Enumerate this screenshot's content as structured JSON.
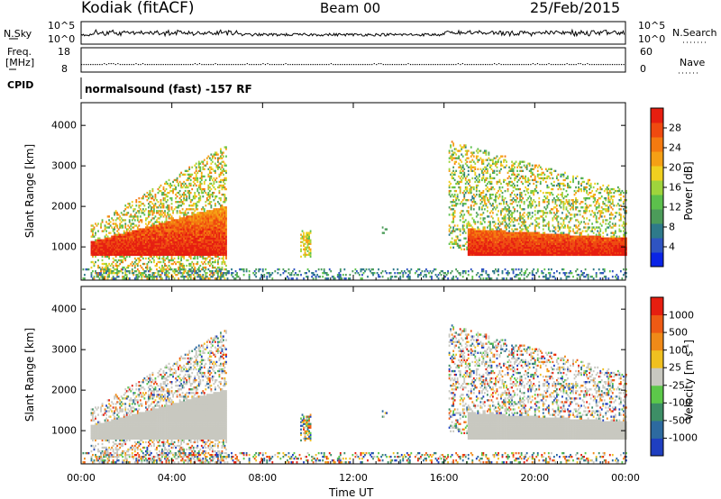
{
  "header": {
    "radar": "Kodiak (fitACF)",
    "beam": "Beam 00",
    "date": "25/Feb/2015"
  },
  "panels": {
    "nsky_label": "N.Sky",
    "nsearch_label": "N.Search",
    "nsky_ticks": [
      "10^5",
      "10^0"
    ],
    "nsearch_ticks": [
      "10^5",
      "10^0"
    ],
    "freq_label_1": "Freq.",
    "freq_label_2": "[MHz]",
    "freq_ticks": [
      "18",
      "8"
    ],
    "nave_label": "Nave",
    "nave_ticks": [
      "60",
      "0"
    ],
    "cpid_label": "CPID",
    "cpid_text": "normalsound (fast) -157 RF"
  },
  "chart_data": [
    {
      "type": "heatmap",
      "panel": "power",
      "ylabel": "Slant Range [km]",
      "xlabel": "",
      "xlim": [
        "00:00",
        "24:00"
      ],
      "ylim": [
        180,
        4560
      ],
      "yticks": [
        1000,
        2000,
        3000,
        4000
      ],
      "colorbar": {
        "label": "Power [dB]",
        "ticks": [
          4,
          8,
          12,
          16,
          20,
          24,
          28
        ],
        "range": [
          0,
          30
        ],
        "colors": [
          "#0a24e6",
          "#2f54c2",
          "#2e7a8a",
          "#4c9c5a",
          "#5cc04c",
          "#9fd43c",
          "#f0d020",
          "#f5a015",
          "#f47a10",
          "#ef4a10",
          "#e61e10"
        ]
      },
      "features": [
        {
          "name": "morning scatter band",
          "t_start": "00:30",
          "t_end": "06:15",
          "range_km": [
            800,
            3500
          ],
          "power_db": [
            4,
            30
          ]
        },
        {
          "name": "evening scatter band",
          "t_start": "16:15",
          "t_end": "24:00",
          "range_km": [
            800,
            3500
          ],
          "power_db": [
            4,
            30
          ]
        },
        {
          "name": "near-range ground scatter",
          "t_start": "00:00",
          "t_end": "24:00",
          "range_km": [
            300,
            450
          ],
          "power_db": [
            4,
            12
          ]
        }
      ]
    },
    {
      "type": "heatmap",
      "panel": "velocity",
      "ylabel": "Slant Range [km]",
      "xlabel": "Time UT",
      "xticks": [
        "00:00",
        "04:00",
        "08:00",
        "12:00",
        "16:00",
        "20:00",
        "00:00"
      ],
      "ylim": [
        180,
        4560
      ],
      "yticks": [
        1000,
        2000,
        3000,
        4000
      ],
      "colorbar": {
        "label": "Velocity [m s^-1]",
        "ticks": [
          "1000",
          "500",
          "100",
          "25",
          "-25",
          "-100",
          "-500",
          "-1000"
        ],
        "colors": [
          "#1f3fc0",
          "#2d6aa0",
          "#3d8e66",
          "#5cc84a",
          "#c8c8c0",
          "#f0c020",
          "#f08a18",
          "#ee5a14",
          "#e61e10"
        ]
      },
      "features": [
        {
          "name": "ground scatter (grey)",
          "t_start": "00:30",
          "t_end": "24:00",
          "range_km": [
            800,
            2200
          ],
          "velocity_ms": [
            -25,
            25
          ]
        },
        {
          "name": "ionospheric scatter",
          "t_start": "16:30",
          "t_end": "19:00",
          "range_km": [
            1000,
            2200
          ],
          "velocity_ms": [
            -500,
            500
          ]
        }
      ]
    }
  ]
}
